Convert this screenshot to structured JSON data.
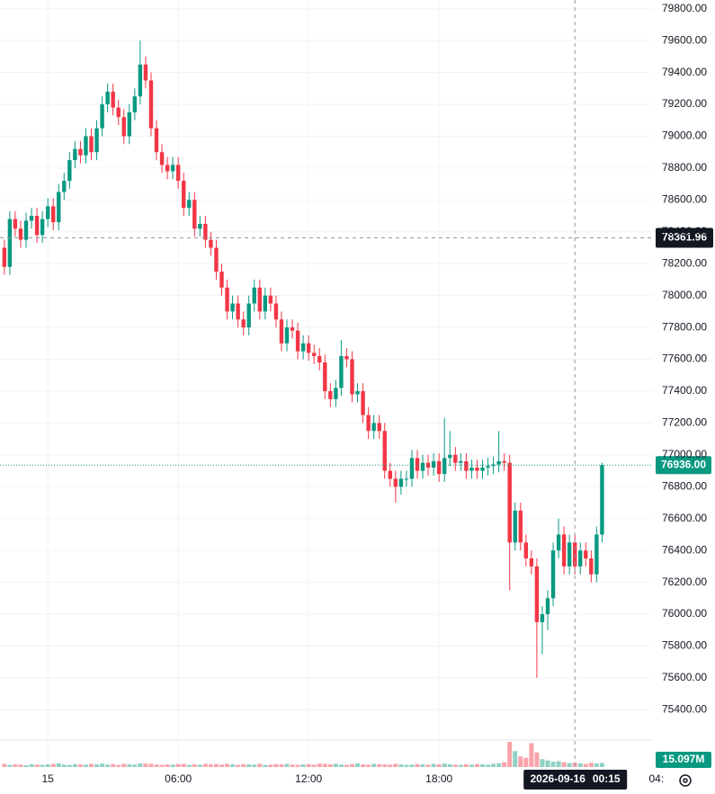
{
  "chart_data": {
    "type": "candlestick",
    "up_color": "#089981",
    "down_color": "#f23645",
    "grid": true,
    "xlim": [
      -2.2,
      27.8
    ],
    "xticks": [
      {
        "value": 0,
        "label": "15"
      },
      {
        "value": 6,
        "label": "06:00"
      },
      {
        "value": 12,
        "label": "12:00"
      },
      {
        "value": 18,
        "label": "18:00"
      },
      {
        "value": 28,
        "label": "04:"
      }
    ],
    "ylim": [
      75210,
      79855
    ],
    "yticks": [
      {
        "value": 75400,
        "label": "75400.00"
      },
      {
        "value": 75600,
        "label": "75600.00"
      },
      {
        "value": 75800,
        "label": "75800.00"
      },
      {
        "value": 76000,
        "label": "76000.00"
      },
      {
        "value": 76200,
        "label": "76200.00"
      },
      {
        "value": 76400,
        "label": "76400.00"
      },
      {
        "value": 76600,
        "label": "76600.00"
      },
      {
        "value": 76800,
        "label": "76800.00"
      },
      {
        "value": 77000,
        "label": "77000.00"
      },
      {
        "value": 77200,
        "label": "77200.00"
      },
      {
        "value": 77400,
        "label": "77400.00"
      },
      {
        "value": 77600,
        "label": "77600.00"
      },
      {
        "value": 77800,
        "label": "77800.00"
      },
      {
        "value": 78000,
        "label": "78000.00"
      },
      {
        "value": 78200,
        "label": "78200.00"
      },
      {
        "value": 78400,
        "label": "78400.00"
      },
      {
        "value": 78600,
        "label": "78600.00"
      },
      {
        "value": 78800,
        "label": "78800.00"
      },
      {
        "value": 79000,
        "label": "79000.00"
      },
      {
        "value": 79200,
        "label": "79200.00"
      },
      {
        "value": 79400,
        "label": "79400.00"
      },
      {
        "value": 79600,
        "label": "79600.00"
      },
      {
        "value": 79800,
        "label": "79800.00"
      }
    ],
    "x": [
      -2,
      -1.75,
      -1.5,
      -1.25,
      -1,
      -0.75,
      -0.5,
      -0.25,
      0,
      0.25,
      0.5,
      0.75,
      1,
      1.25,
      1.5,
      1.75,
      2,
      2.25,
      2.5,
      2.75,
      3,
      3.25,
      3.5,
      3.75,
      4,
      4.25,
      4.5,
      4.75,
      5,
      5.25,
      5.5,
      5.75,
      6,
      6.25,
      6.5,
      6.75,
      7,
      7.25,
      7.5,
      7.75,
      8,
      8.25,
      8.5,
      8.75,
      9,
      9.25,
      9.5,
      9.75,
      10,
      10.25,
      10.5,
      10.75,
      11,
      11.25,
      11.5,
      11.75,
      12,
      12.25,
      12.5,
      12.75,
      13,
      13.25,
      13.5,
      13.75,
      14,
      14.25,
      14.5,
      14.75,
      15,
      15.25,
      15.5,
      15.75,
      16,
      16.25,
      16.5,
      16.75,
      17,
      17.25,
      17.5,
      17.75,
      18,
      18.25,
      18.5,
      18.75,
      19,
      19.25,
      19.5,
      19.75,
      20,
      20.25,
      20.5,
      20.75,
      21,
      21.25,
      21.5,
      21.75,
      22,
      22.25,
      22.5,
      22.75,
      23,
      23.25,
      23.5,
      23.75,
      24,
      24.25,
      24.5,
      24.75,
      25,
      25.25,
      25.5
    ],
    "open": [
      78300,
      78180,
      78480,
      78420,
      78350,
      78470,
      78500,
      78380,
      78480,
      78560,
      78460,
      78650,
      78720,
      78850,
      78920,
      78880,
      79000,
      78900,
      79050,
      79200,
      79280,
      79180,
      79120,
      79000,
      79150,
      79250,
      79450,
      79350,
      79050,
      78900,
      78820,
      78780,
      78820,
      78720,
      78550,
      78600,
      78420,
      78450,
      78350,
      78300,
      78150,
      78050,
      77900,
      77950,
      77850,
      77800,
      77950,
      78050,
      77900,
      78000,
      77950,
      77850,
      77700,
      77800,
      77780,
      77650,
      77700,
      77640,
      77620,
      77580,
      77400,
      77350,
      77420,
      77620,
      77600,
      77380,
      77400,
      77250,
      77150,
      77200,
      77150,
      76900,
      76850,
      76800,
      76850,
      76850,
      76980,
      76900,
      76950,
      76920,
      76960,
      76880,
      76980,
      77000,
      76950,
      76960,
      76900,
      76920,
      76900,
      76920,
      76930,
      76940,
      76960,
      76950,
      76450,
      76650,
      76450,
      76350,
      76300,
      75950,
      76000,
      76100,
      76400,
      76500,
      76300,
      76450,
      76300,
      76400,
      76350,
      76250,
      76500
    ],
    "high": [
      78350,
      78530,
      78530,
      78470,
      78520,
      78550,
      78550,
      78530,
      78610,
      78610,
      78700,
      78770,
      78900,
      78970,
      78970,
      79050,
      79050,
      79100,
      79250,
      79330,
      79330,
      79230,
      79170,
      79200,
      79300,
      79600,
      79500,
      79400,
      79100,
      78950,
      78870,
      78870,
      78870,
      78770,
      78650,
      78650,
      78500,
      78500,
      78400,
      78350,
      78200,
      78100,
      78000,
      78000,
      77900,
      78000,
      78100,
      78100,
      78050,
      78050,
      78000,
      77900,
      77850,
      77850,
      77830,
      77750,
      77750,
      77690,
      77670,
      77630,
      77450,
      77470,
      77720,
      77670,
      77650,
      77450,
      77450,
      77300,
      77250,
      77250,
      77200,
      76950,
      76900,
      76900,
      76900,
      77030,
      77030,
      77000,
      77000,
      77010,
      77010,
      77230,
      77150,
      77050,
      77010,
      77010,
      76970,
      76970,
      76970,
      76980,
      76990,
      77150,
      77010,
      77000,
      76700,
      76700,
      76500,
      76400,
      76350,
      76050,
      76150,
      76450,
      76600,
      76550,
      76500,
      76500,
      76450,
      76450,
      76400,
      76550,
      76950
    ],
    "low": [
      78130,
      78130,
      78370,
      78300,
      78300,
      78420,
      78330,
      78330,
      78430,
      78410,
      78410,
      78600,
      78670,
      78800,
      78830,
      78830,
      78850,
      78850,
      79000,
      79150,
      79130,
      79070,
      78950,
      78950,
      79100,
      79200,
      79300,
      79000,
      78850,
      78770,
      78730,
      78730,
      78670,
      78500,
      78500,
      78370,
      78370,
      78300,
      78250,
      78100,
      78000,
      77850,
      77850,
      77800,
      77750,
      77750,
      77900,
      77850,
      77850,
      77900,
      77800,
      77650,
      77650,
      77730,
      77600,
      77600,
      77590,
      77570,
      77530,
      77350,
      77300,
      77300,
      77370,
      77550,
      77330,
      77330,
      77200,
      77100,
      77100,
      77100,
      76850,
      76800,
      76700,
      76750,
      76800,
      76800,
      76850,
      76850,
      76870,
      76870,
      76830,
      76830,
      76930,
      76900,
      76900,
      76850,
      76850,
      76850,
      76850,
      76870,
      76880,
      76890,
      76900,
      76150,
      76400,
      76400,
      76300,
      76250,
      75600,
      75750,
      75900,
      76050,
      76350,
      76250,
      76250,
      76250,
      76250,
      76300,
      76200,
      76200,
      76450
    ],
    "close": [
      78180,
      78480,
      78420,
      78350,
      78470,
      78500,
      78380,
      78480,
      78560,
      78460,
      78650,
      78720,
      78850,
      78920,
      78880,
      79000,
      78900,
      79050,
      79200,
      79280,
      79180,
      79120,
      79000,
      79150,
      79250,
      79450,
      79350,
      79050,
      78900,
      78820,
      78780,
      78820,
      78720,
      78550,
      78600,
      78420,
      78450,
      78350,
      78300,
      78150,
      78050,
      77900,
      77950,
      77850,
      77800,
      77950,
      78050,
      77900,
      78000,
      77950,
      77850,
      77700,
      77800,
      77780,
      77650,
      77700,
      77640,
      77620,
      77580,
      77400,
      77350,
      77420,
      77620,
      77600,
      77380,
      77400,
      77250,
      77150,
      77200,
      77150,
      76900,
      76850,
      76800,
      76850,
      76850,
      76980,
      76900,
      76950,
      76920,
      76960,
      76880,
      76980,
      77000,
      76950,
      76960,
      76900,
      76920,
      76900,
      76920,
      76930,
      76940,
      76960,
      76950,
      76450,
      76650,
      76450,
      76350,
      76300,
      75950,
      76000,
      76100,
      76400,
      76500,
      76300,
      76450,
      76300,
      76400,
      76350,
      76250,
      76500,
      76936
    ],
    "volume": [
      12,
      8,
      10,
      9,
      7,
      11,
      9,
      8,
      10,
      12,
      14,
      9,
      8,
      11,
      10,
      9,
      12,
      10,
      13,
      9,
      11,
      8,
      12,
      10,
      9,
      14,
      13,
      12,
      9,
      8,
      10,
      9,
      11,
      12,
      8,
      10,
      9,
      12,
      10,
      11,
      9,
      12,
      10,
      8,
      11,
      10,
      9,
      12,
      8,
      9,
      11,
      10,
      12,
      9,
      8,
      10,
      11,
      9,
      13,
      12,
      10,
      12,
      9,
      8,
      11,
      14,
      10,
      9,
      12,
      11,
      10,
      9,
      12,
      10,
      8,
      9,
      11,
      10,
      9,
      12,
      10,
      13,
      11,
      9,
      8,
      10,
      9,
      11,
      10,
      9,
      12,
      14,
      18,
      95,
      60,
      40,
      35,
      90,
      55,
      30,
      25,
      20,
      22,
      18,
      15,
      17,
      14,
      12,
      16,
      13,
      15.097
    ],
    "crosshair": {
      "x": 24.25,
      "date": "2026-09-16",
      "time": "00:15",
      "price": {
        "value": 78361.96,
        "label": "78361.96"
      }
    },
    "last_price": {
      "value": 76936,
      "label": "76936.00"
    },
    "last_volume": {
      "value": 15.097,
      "label": "15.097M"
    }
  }
}
